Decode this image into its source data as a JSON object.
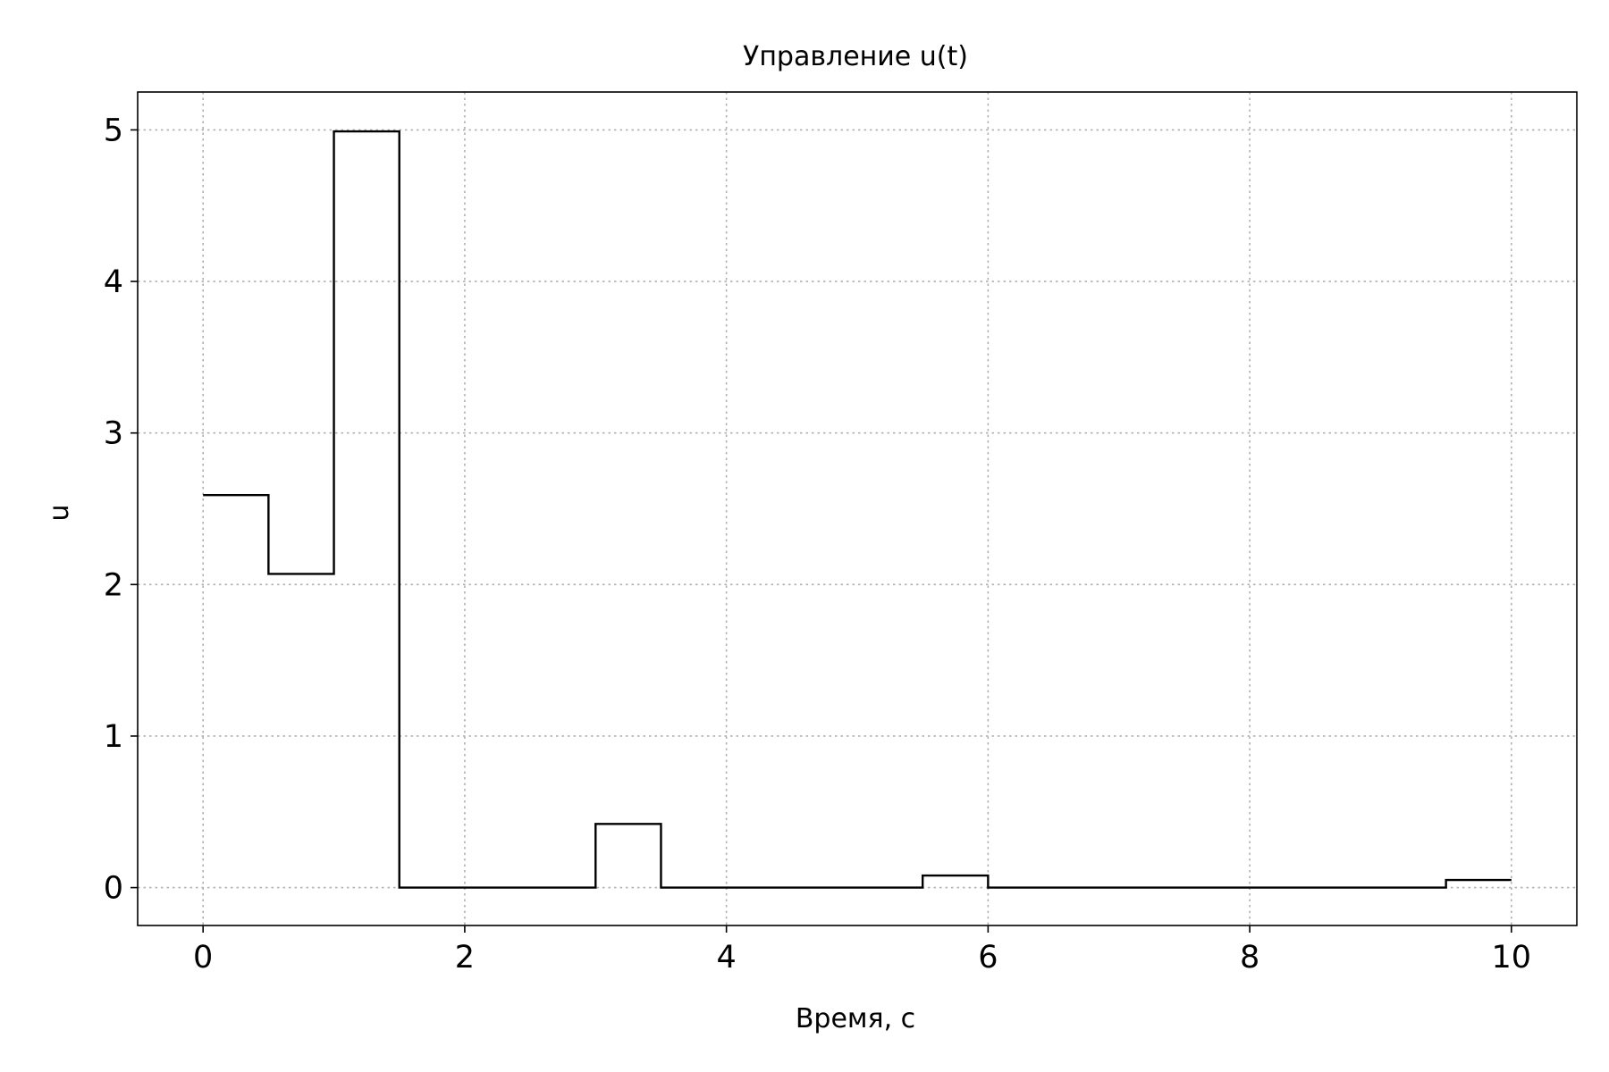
{
  "chart_data": {
    "type": "line",
    "step": "post",
    "title": "Управление u(t)",
    "xlabel": "Время, с",
    "ylabel": "u",
    "xlim": [
      -0.5,
      10.5
    ],
    "ylim": [
      -0.25,
      5.25
    ],
    "xticks": [
      0,
      2,
      4,
      6,
      8,
      10
    ],
    "yticks": [
      0,
      1,
      2,
      3,
      4,
      5
    ],
    "grid": true,
    "line_color": "#000000",
    "grid_color": "#b0b0b0",
    "series": [
      {
        "x": [
          0,
          0.5,
          1.0,
          1.5,
          2.0,
          2.5,
          3.0,
          3.5,
          4.0,
          4.5,
          5.0,
          5.5,
          6.0,
          6.5,
          7.0,
          7.5,
          8.0,
          8.5,
          9.0,
          9.5,
          10.0
        ],
        "values": [
          2.59,
          2.07,
          4.99,
          0.0,
          0.0,
          0.0,
          0.42,
          0.0,
          0.0,
          0.0,
          0.0,
          0.08,
          0.0,
          0.0,
          0.0,
          0.0,
          0.0,
          0.0,
          0.0,
          0.05,
          0.05
        ]
      }
    ]
  }
}
